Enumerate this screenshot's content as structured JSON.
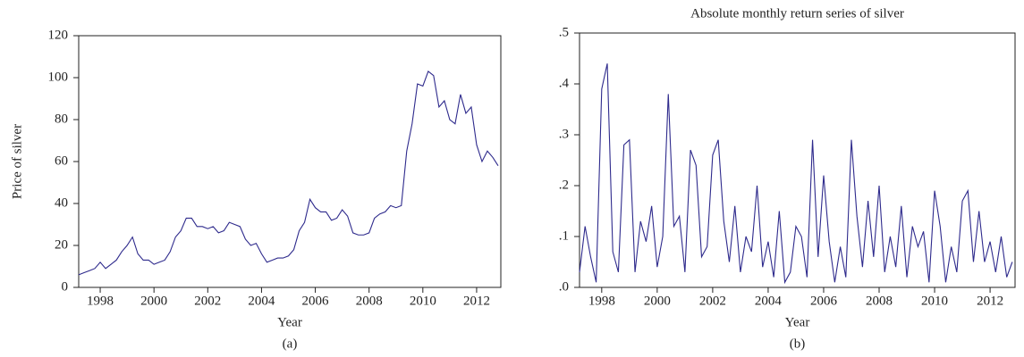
{
  "chart_data": [
    {
      "type": "line",
      "caption": "(a)",
      "x_label": "Year",
      "y_label": "Price of silver",
      "x": [
        1997.2,
        1997.4,
        1997.6,
        1997.8,
        1998.0,
        1998.2,
        1998.4,
        1998.6,
        1998.8,
        1999.0,
        1999.2,
        1999.4,
        1999.6,
        1999.8,
        2000.0,
        2000.2,
        2000.4,
        2000.6,
        2000.8,
        2001.0,
        2001.2,
        2001.4,
        2001.6,
        2001.8,
        2002.0,
        2002.2,
        2002.4,
        2002.6,
        2002.8,
        2003.0,
        2003.2,
        2003.4,
        2003.6,
        2003.8,
        2004.0,
        2004.2,
        2004.4,
        2004.6,
        2004.8,
        2005.0,
        2005.2,
        2005.4,
        2005.6,
        2005.8,
        2006.0,
        2006.2,
        2006.4,
        2006.6,
        2006.8,
        2007.0,
        2007.2,
        2007.4,
        2007.6,
        2007.8,
        2008.0,
        2008.2,
        2008.4,
        2008.6,
        2008.8,
        2009.0,
        2009.2,
        2009.4,
        2009.6,
        2009.8,
        2010.0,
        2010.2,
        2010.4,
        2010.6,
        2010.8,
        2011.0,
        2011.2,
        2011.4,
        2011.6,
        2011.8,
        2012.0,
        2012.2,
        2012.4,
        2012.6,
        2012.8
      ],
      "series": [
        {
          "color": "#2e2a8c",
          "values": [
            6,
            7,
            8,
            9,
            12,
            9,
            11,
            13,
            17,
            20,
            24,
            16,
            13,
            13,
            11,
            12,
            13,
            17,
            24,
            27,
            33,
            33,
            29,
            29,
            28,
            29,
            26,
            27,
            31,
            30,
            29,
            23,
            20,
            21,
            16,
            12,
            13,
            14,
            14,
            15,
            18,
            27,
            31,
            42,
            38,
            36,
            36,
            32,
            33,
            37,
            34,
            26,
            25,
            25,
            26,
            33,
            35,
            36,
            39,
            38,
            39,
            65,
            78,
            97,
            96,
            103,
            101,
            86,
            89,
            80,
            78,
            92,
            83,
            86,
            68,
            60,
            65,
            62,
            58
          ]
        }
      ],
      "xlim": [
        1997.2,
        2012.9
      ],
      "xticks": [
        1998,
        2000,
        2002,
        2004,
        2006,
        2008,
        2010,
        2012
      ],
      "ylim": [
        0,
        120
      ],
      "yticks": [
        0,
        20,
        40,
        60,
        80,
        100,
        120
      ]
    },
    {
      "type": "line",
      "title": "Absolute monthly return series of silver",
      "caption": "(b)",
      "x_label": "Year",
      "x": [
        1997.2,
        1997.4,
        1997.6,
        1997.8,
        1998.0,
        1998.2,
        1998.4,
        1998.6,
        1998.8,
        1999.0,
        1999.2,
        1999.4,
        1999.6,
        1999.8,
        2000.0,
        2000.2,
        2000.4,
        2000.6,
        2000.8,
        2001.0,
        2001.2,
        2001.4,
        2001.6,
        2001.8,
        2002.0,
        2002.2,
        2002.4,
        2002.6,
        2002.8,
        2003.0,
        2003.2,
        2003.4,
        2003.6,
        2003.8,
        2004.0,
        2004.2,
        2004.4,
        2004.6,
        2004.8,
        2005.0,
        2005.2,
        2005.4,
        2005.6,
        2005.8,
        2006.0,
        2006.2,
        2006.4,
        2006.6,
        2006.8,
        2007.0,
        2007.2,
        2007.4,
        2007.6,
        2007.8,
        2008.0,
        2008.2,
        2008.4,
        2008.6,
        2008.8,
        2009.0,
        2009.2,
        2009.4,
        2009.6,
        2009.8,
        2010.0,
        2010.2,
        2010.4,
        2010.6,
        2010.8,
        2011.0,
        2011.2,
        2011.4,
        2011.6,
        2011.8,
        2012.0,
        2012.2,
        2012.4,
        2012.6,
        2012.8
      ],
      "series": [
        {
          "color": "#2e2a8c",
          "values": [
            0.03,
            0.12,
            0.06,
            0.01,
            0.39,
            0.44,
            0.07,
            0.03,
            0.28,
            0.29,
            0.03,
            0.13,
            0.09,
            0.16,
            0.04,
            0.1,
            0.38,
            0.12,
            0.14,
            0.03,
            0.27,
            0.24,
            0.06,
            0.08,
            0.26,
            0.29,
            0.13,
            0.05,
            0.16,
            0.03,
            0.1,
            0.07,
            0.2,
            0.04,
            0.09,
            0.02,
            0.15,
            0.01,
            0.03,
            0.12,
            0.1,
            0.02,
            0.29,
            0.06,
            0.22,
            0.09,
            0.01,
            0.08,
            0.02,
            0.29,
            0.14,
            0.04,
            0.17,
            0.06,
            0.2,
            0.03,
            0.1,
            0.04,
            0.16,
            0.02,
            0.12,
            0.08,
            0.11,
            0.01,
            0.19,
            0.12,
            0.01,
            0.08,
            0.03,
            0.17,
            0.19,
            0.05,
            0.15,
            0.05,
            0.09,
            0.03,
            0.1,
            0.02,
            0.05
          ]
        }
      ],
      "xlim": [
        1997.2,
        2012.9
      ],
      "xticks": [
        1998,
        2000,
        2002,
        2004,
        2006,
        2008,
        2010,
        2012
      ],
      "ylim": [
        0,
        0.5
      ],
      "yticks": [
        {
          "value": 0,
          "label": ".0"
        },
        {
          "value": 0.1,
          "label": ".1"
        },
        {
          "value": 0.2,
          "label": ".2"
        },
        {
          "value": 0.3,
          "label": ".3"
        },
        {
          "value": 0.4,
          "label": ".4"
        },
        {
          "value": 0.5,
          "label": ".5"
        }
      ]
    }
  ]
}
